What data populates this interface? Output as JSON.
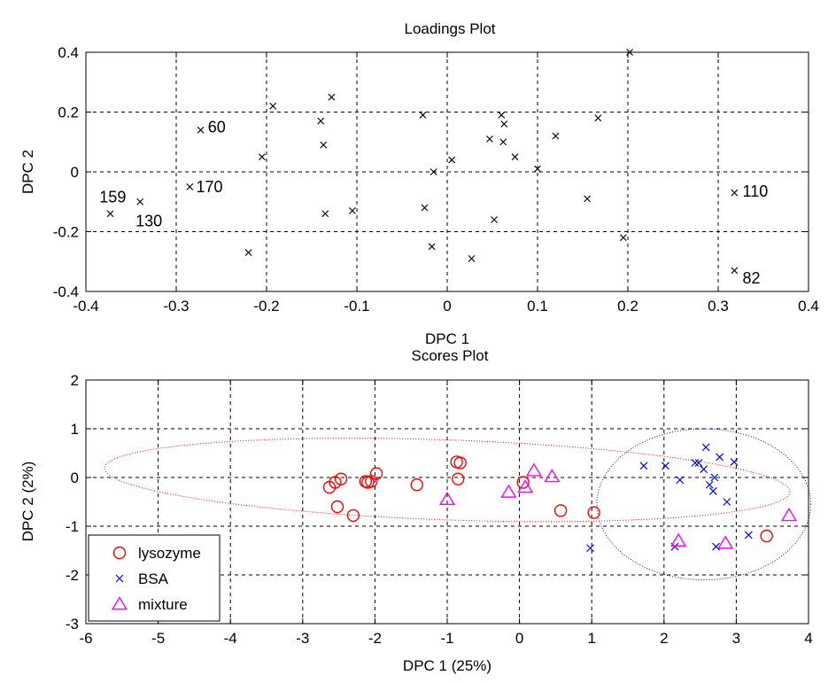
{
  "chart_data": [
    {
      "type": "scatter",
      "title": "Loadings Plot",
      "xlabel": "DPC 1",
      "ylabel": "DPC 2",
      "xlim": [
        -0.4,
        0.4
      ],
      "ylim": [
        -0.4,
        0.4
      ],
      "xticks": [
        -0.4,
        -0.3,
        -0.2,
        -0.1,
        0,
        0.1,
        0.2,
        0.3,
        0.4
      ],
      "yticks": [
        -0.4,
        -0.2,
        0,
        0.2,
        0.4
      ],
      "grid": true,
      "marker_color": "#000000",
      "series": [
        {
          "marker": "x",
          "points": [
            {
              "x": -0.373,
              "y": -0.14
            },
            {
              "x": -0.34,
              "y": -0.1
            },
            {
              "x": -0.273,
              "y": 0.14
            },
            {
              "x": -0.285,
              "y": -0.05
            },
            {
              "x": -0.22,
              "y": -0.27
            },
            {
              "x": -0.205,
              "y": 0.05
            },
            {
              "x": -0.193,
              "y": 0.22
            },
            {
              "x": -0.128,
              "y": 0.25
            },
            {
              "x": -0.14,
              "y": 0.17
            },
            {
              "x": -0.137,
              "y": 0.09
            },
            {
              "x": -0.135,
              "y": -0.14
            },
            {
              "x": -0.105,
              "y": -0.13
            },
            {
              "x": -0.027,
              "y": 0.19
            },
            {
              "x": -0.025,
              "y": -0.12
            },
            {
              "x": -0.015,
              "y": 0.0
            },
            {
              "x": -0.017,
              "y": -0.25
            },
            {
              "x": 0.005,
              "y": 0.04
            },
            {
              "x": 0.027,
              "y": -0.29
            },
            {
              "x": 0.047,
              "y": 0.11
            },
            {
              "x": 0.052,
              "y": -0.16
            },
            {
              "x": 0.06,
              "y": 0.19
            },
            {
              "x": 0.063,
              "y": 0.16
            },
            {
              "x": 0.062,
              "y": 0.1
            },
            {
              "x": 0.075,
              "y": 0.05
            },
            {
              "x": 0.1,
              "y": 0.01
            },
            {
              "x": 0.12,
              "y": 0.12
            },
            {
              "x": 0.155,
              "y": -0.09
            },
            {
              "x": 0.167,
              "y": 0.18
            },
            {
              "x": 0.195,
              "y": -0.22
            },
            {
              "x": 0.202,
              "y": 0.4
            },
            {
              "x": 0.318,
              "y": -0.07
            },
            {
              "x": 0.318,
              "y": -0.33
            }
          ]
        }
      ],
      "annotations": [
        {
          "text": "159",
          "x": -0.385,
          "y": -0.085
        },
        {
          "text": "130",
          "x": -0.345,
          "y": -0.165
        },
        {
          "text": "60",
          "x": -0.265,
          "y": 0.15
        },
        {
          "text": "170",
          "x": -0.278,
          "y": -0.05
        },
        {
          "text": "110",
          "x": 0.327,
          "y": -0.065
        },
        {
          "text": "82",
          "x": 0.327,
          "y": -0.355
        }
      ]
    },
    {
      "type": "scatter",
      "title": "Scores Plot",
      "xlabel": "DPC 1 (25%)",
      "ylabel": "DPC 2 (2%)",
      "xlim": [
        -6,
        4
      ],
      "ylim": [
        -3,
        2
      ],
      "xticks": [
        -6,
        -5,
        -4,
        -3,
        -2,
        -1,
        0,
        1,
        2,
        3,
        4
      ],
      "yticks": [
        -3,
        -2,
        -1,
        0,
        1,
        2
      ],
      "grid": true,
      "legend": "bottom-left",
      "series": [
        {
          "name": "lysozyme",
          "marker": "circle",
          "color": "#ff0000",
          "points": [
            {
              "x": -2.63,
              "y": -0.2
            },
            {
              "x": -2.55,
              "y": -0.1
            },
            {
              "x": -2.47,
              "y": -0.03
            },
            {
              "x": -2.52,
              "y": -0.6
            },
            {
              "x": -2.3,
              "y": -0.78
            },
            {
              "x": -2.13,
              "y": -0.08
            },
            {
              "x": -2.1,
              "y": -0.1
            },
            {
              "x": -2.05,
              "y": -0.08
            },
            {
              "x": -1.98,
              "y": 0.08
            },
            {
              "x": -1.42,
              "y": -0.15
            },
            {
              "x": -0.87,
              "y": 0.32
            },
            {
              "x": -0.82,
              "y": 0.3
            },
            {
              "x": -0.85,
              "y": -0.03
            },
            {
              "x": 0.05,
              "y": -0.1
            },
            {
              "x": 0.57,
              "y": -0.68
            },
            {
              "x": 1.03,
              "y": -0.72
            },
            {
              "x": 3.42,
              "y": -1.2
            }
          ]
        },
        {
          "name": "BSA",
          "marker": "x",
          "color": "#0000ff",
          "points": [
            {
              "x": 0.98,
              "y": -1.45
            },
            {
              "x": 1.72,
              "y": 0.24
            },
            {
              "x": 2.02,
              "y": 0.24
            },
            {
              "x": 2.15,
              "y": -1.42
            },
            {
              "x": 2.22,
              "y": -0.05
            },
            {
              "x": 2.43,
              "y": 0.3
            },
            {
              "x": 2.48,
              "y": 0.3
            },
            {
              "x": 2.55,
              "y": 0.17
            },
            {
              "x": 2.58,
              "y": 0.62
            },
            {
              "x": 2.63,
              "y": -0.15
            },
            {
              "x": 2.68,
              "y": -0.28
            },
            {
              "x": 2.7,
              "y": 0.0
            },
            {
              "x": 2.72,
              "y": -1.42
            },
            {
              "x": 2.77,
              "y": 0.42
            },
            {
              "x": 2.87,
              "y": -0.5
            },
            {
              "x": 2.97,
              "y": 0.32
            },
            {
              "x": 3.17,
              "y": -1.18
            }
          ]
        },
        {
          "name": "mixture",
          "marker": "triangle",
          "color": "#ff00ff",
          "points": [
            {
              "x": -1.0,
              "y": -0.45
            },
            {
              "x": -0.15,
              "y": -0.3
            },
            {
              "x": 0.08,
              "y": -0.2
            },
            {
              "x": 0.2,
              "y": 0.14
            },
            {
              "x": 0.45,
              "y": 0.02
            },
            {
              "x": 2.2,
              "y": -1.3
            },
            {
              "x": 2.85,
              "y": -1.35
            },
            {
              "x": 3.73,
              "y": -0.78
            }
          ]
        }
      ],
      "ellipses": [
        {
          "color": "#ff0000",
          "cx": -1.0,
          "cy": -0.05,
          "rx": 4.75,
          "ry": 0.82,
          "angle_deg": -3.0
        },
        {
          "color": "#0000ff",
          "cx": 2.55,
          "cy": -0.55,
          "rx": 1.48,
          "ry": 1.55,
          "angle_deg": 0
        }
      ]
    }
  ]
}
